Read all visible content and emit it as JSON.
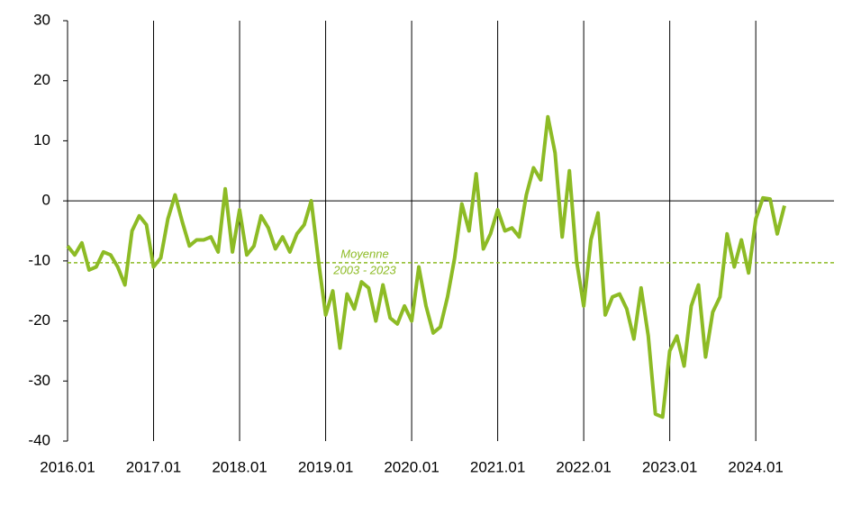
{
  "chart_data": {
    "type": "line",
    "categories": [
      "2016.01",
      null,
      null,
      null,
      null,
      null,
      null,
      null,
      null,
      null,
      null,
      null,
      "2017.01",
      null,
      null,
      null,
      null,
      null,
      null,
      null,
      null,
      null,
      null,
      null,
      "2018.01",
      null,
      null,
      null,
      null,
      null,
      null,
      null,
      null,
      null,
      null,
      null,
      "2019.01",
      null,
      null,
      null,
      null,
      null,
      null,
      null,
      null,
      null,
      null,
      null,
      "2020.01",
      null,
      null,
      null,
      null,
      null,
      null,
      null,
      null,
      null,
      null,
      null,
      "2021.01",
      null,
      null,
      null,
      null,
      null,
      null,
      null,
      null,
      null,
      null,
      null,
      "2022.01",
      null,
      null,
      null,
      null,
      null,
      null,
      null,
      null,
      null,
      null,
      null,
      "2023.01",
      null,
      null,
      null,
      null,
      null,
      null,
      null,
      null,
      null,
      null,
      null,
      "2024.01",
      null,
      null,
      null,
      null
    ],
    "series": [
      {
        "color": "#8dbb25",
        "values": [
          -7.5,
          -9,
          -7,
          -11.5,
          -11,
          -8.5,
          -9,
          -11,
          -14,
          -5,
          -2.5,
          -4,
          -11,
          -9.5,
          -3,
          1,
          -3.5,
          -7.5,
          -6.5,
          -6.5,
          -6,
          -8.5,
          2,
          -8.5,
          -1.5,
          -9,
          -7.5,
          -2.5,
          -4.5,
          -8,
          -6,
          -8.5,
          -5.5,
          -4,
          0,
          -10,
          -19,
          -15,
          -24.5,
          -15.5,
          -18,
          -13.5,
          -14.5,
          -20,
          -14,
          -19.5,
          -20.5,
          -17.5,
          -20,
          -11,
          -17.5,
          -22,
          -21,
          -16,
          -9.5,
          -0.5,
          -5,
          4.5,
          -8,
          -5.5,
          -1.5,
          -5,
          -4.5,
          -6,
          1,
          5.5,
          3.5,
          14,
          8,
          -6,
          5,
          -10,
          -17.5,
          -6.5,
          -2,
          -19,
          -16,
          -15.5,
          -18,
          -23,
          -14.5,
          -22.5,
          -35.5,
          -36,
          -25,
          -22.5,
          -27.5,
          -17.5,
          -14,
          -26,
          -18.5,
          -16,
          -5.5,
          -11,
          -6.5,
          -12,
          -3,
          0.5,
          0.3,
          -5.5,
          -0.8
        ]
      }
    ],
    "average": {
      "value": -10.3,
      "label": "Moyenne",
      "sublabel": "2003 - 2023"
    },
    "ylim": [
      -40,
      30
    ],
    "yticks": [
      -40,
      -30,
      -20,
      -10,
      0,
      10,
      20,
      30
    ]
  }
}
